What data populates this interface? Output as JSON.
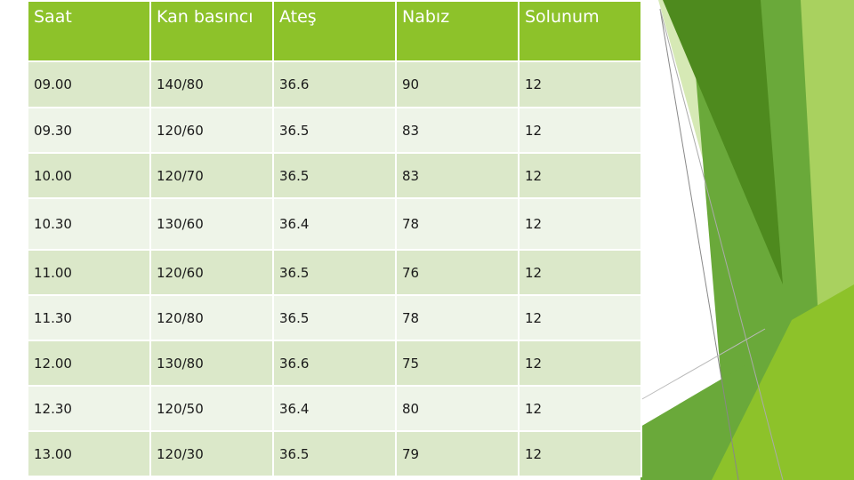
{
  "table": {
    "headers": [
      "Saat",
      "Kan basıncı",
      "Ateş",
      "Nabız",
      "Solunum"
    ],
    "rows": [
      [
        "09.00",
        "140/80",
        "36.6",
        "90",
        "12"
      ],
      [
        "09.30",
        "120/60",
        "36.5",
        "83",
        "12"
      ],
      [
        "10.00",
        "120/70",
        "36.5",
        "83",
        "12"
      ],
      [
        "10.30",
        "130/60",
        "36.4",
        "78",
        "12"
      ],
      [
        "11.00",
        "120/60",
        "36.5",
        "76",
        "12"
      ],
      [
        "11.30",
        "120/80",
        "36.5",
        "78",
        "12"
      ],
      [
        "12.00",
        "130/80",
        "36.6",
        "75",
        "12"
      ],
      [
        "12.30",
        "120/50",
        "36.4",
        "80",
        "12"
      ],
      [
        "13.00",
        "120/30",
        "36.5",
        "79",
        "12"
      ]
    ]
  },
  "colors": {
    "header_bg": "#8dc22a",
    "row_odd": "#dbe8c9",
    "row_even": "#eef4e8",
    "accent_dark": "#4e8a1e",
    "accent_mid": "#6aa93a",
    "accent_light": "#a9d15f",
    "accent_pale": "#d6e9b5"
  }
}
